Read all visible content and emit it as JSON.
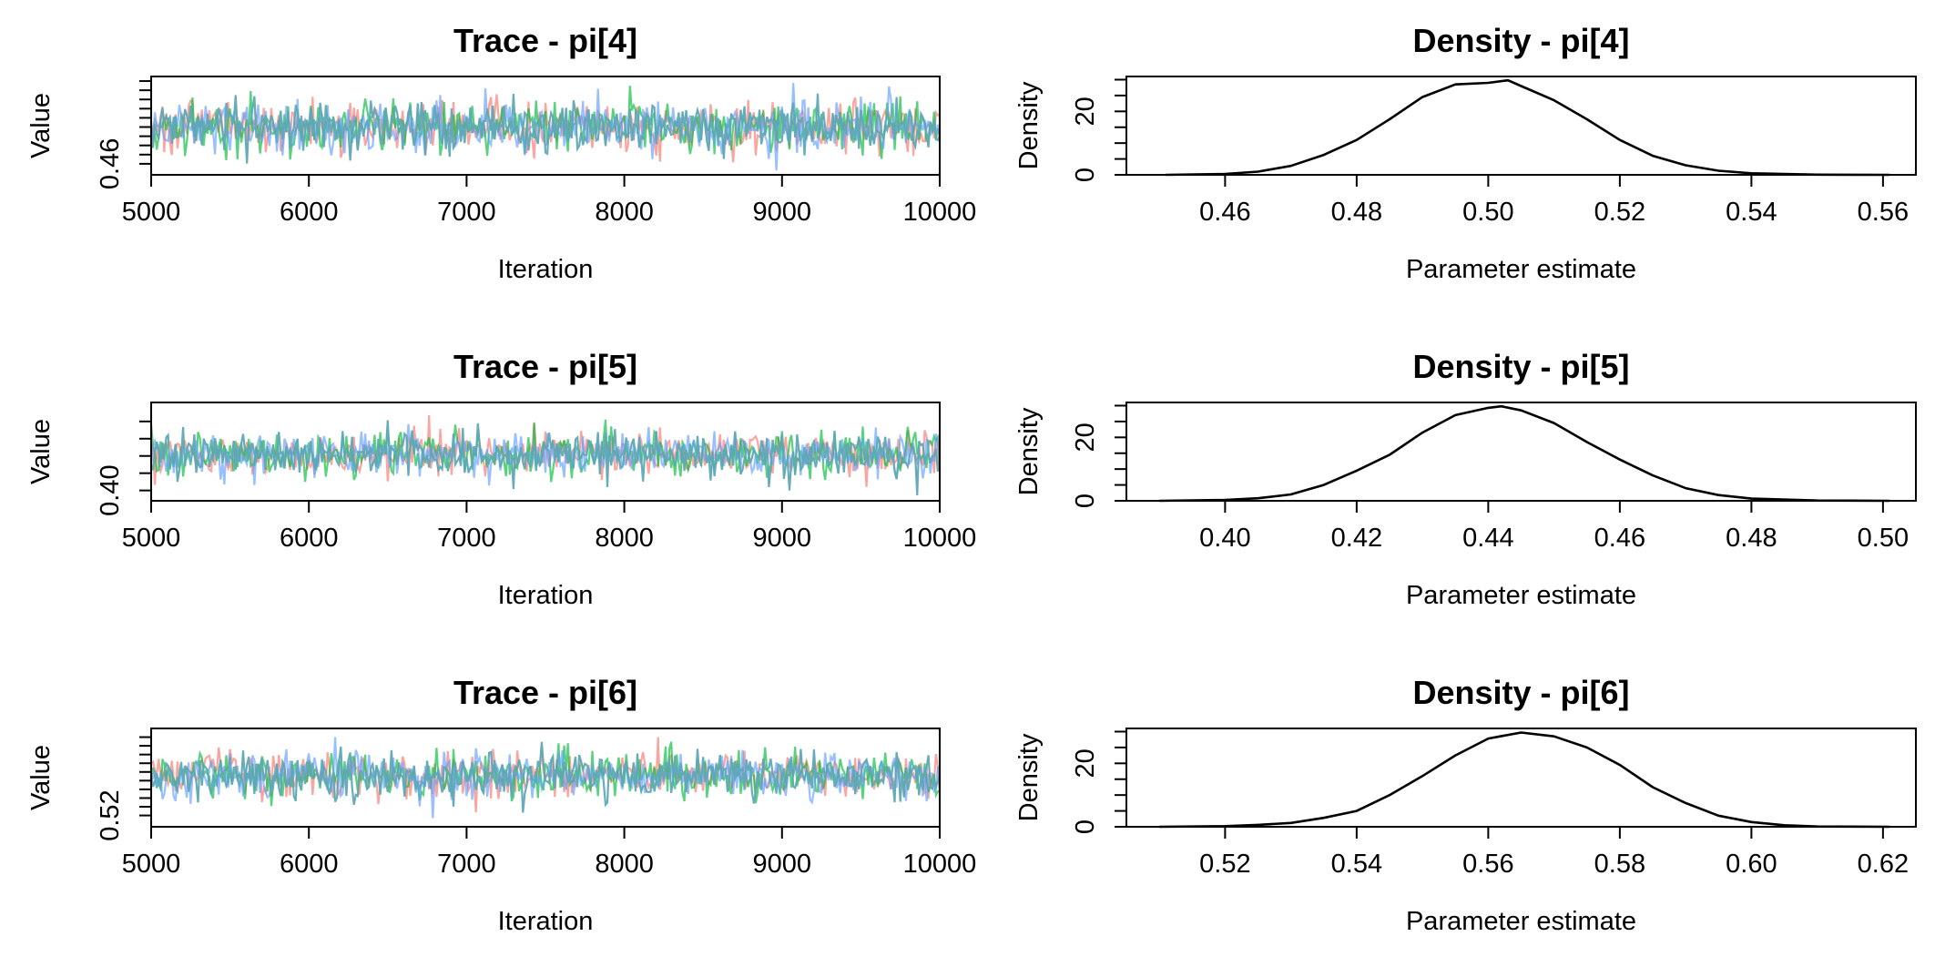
{
  "chart_data": [
    {
      "type": "line",
      "title": "Trace - pi[4]",
      "xlabel": "Iteration",
      "ylabel": "Value",
      "xlim": [
        5000,
        10000
      ],
      "ylim": [
        0.448,
        0.555
      ],
      "x_ticks": [
        5000,
        6000,
        7000,
        8000,
        9000,
        10000
      ],
      "x_tick_labels": [
        "5000",
        "6000",
        "7000",
        "8000",
        "9000",
        "10000"
      ],
      "y_ticks": [
        0.46,
        0.47,
        0.48,
        0.49,
        0.5,
        0.51,
        0.52,
        0.53,
        0.54,
        0.55
      ],
      "y_tick_labels": [
        "0.46"
      ],
      "chain_mean": 0.5,
      "chain_sd": 0.014,
      "series": [
        {
          "color": "#F8766D"
        },
        {
          "color": "#00BA38"
        },
        {
          "color": "#619CFF"
        },
        {
          "color": "#5FA8B5"
        }
      ]
    },
    {
      "type": "area",
      "title": "Density - pi[4]",
      "xlabel": "Parameter estimate",
      "ylabel": "Density",
      "xlim": [
        0.445,
        0.565
      ],
      "ylim": [
        0,
        31
      ],
      "x_ticks": [
        0.46,
        0.48,
        0.5,
        0.52,
        0.54,
        0.56
      ],
      "x_tick_labels": [
        "0.46",
        "0.48",
        "0.50",
        "0.52",
        "0.54",
        "0.56"
      ],
      "y_ticks": [
        0,
        5,
        10,
        15,
        20,
        25,
        30
      ],
      "y_tick_labels": [
        "0",
        "20"
      ],
      "x": [
        0.451,
        0.46,
        0.465,
        0.47,
        0.475,
        0.48,
        0.485,
        0.49,
        0.495,
        0.5,
        0.503,
        0.505,
        0.51,
        0.515,
        0.52,
        0.525,
        0.53,
        0.535,
        0.54,
        0.55,
        0.561
      ],
      "y": [
        0.0,
        0.3,
        1.0,
        2.8,
        6.3,
        11.0,
        17.5,
        24.5,
        28.5,
        29.0,
        29.8,
        28.0,
        23.5,
        17.5,
        11.0,
        6.0,
        3.0,
        1.3,
        0.5,
        0.05,
        0.0
      ]
    },
    {
      "type": "line",
      "title": "Trace - pi[5]",
      "xlabel": "Iteration",
      "ylabel": "Value",
      "xlim": [
        5000,
        10000
      ],
      "ylim": [
        0.388,
        0.502
      ],
      "x_ticks": [
        5000,
        6000,
        7000,
        8000,
        9000,
        10000
      ],
      "x_tick_labels": [
        "5000",
        "6000",
        "7000",
        "8000",
        "9000",
        "10000"
      ],
      "y_ticks": [
        0.4,
        0.42,
        0.44,
        0.46,
        0.48
      ],
      "y_tick_labels": [
        "0.40"
      ],
      "chain_mean": 0.442,
      "chain_sd": 0.0125,
      "series": [
        {
          "color": "#F8766D"
        },
        {
          "color": "#00BA38"
        },
        {
          "color": "#619CFF"
        },
        {
          "color": "#5FA8B5"
        }
      ]
    },
    {
      "type": "area",
      "title": "Density - pi[5]",
      "xlabel": "Parameter estimate",
      "ylabel": "Density",
      "xlim": [
        0.385,
        0.505
      ],
      "ylim": [
        0,
        31
      ],
      "x_ticks": [
        0.4,
        0.42,
        0.44,
        0.46,
        0.48,
        0.5
      ],
      "x_tick_labels": [
        "0.40",
        "0.42",
        "0.44",
        "0.46",
        "0.48",
        "0.50"
      ],
      "y_ticks": [
        0,
        5,
        10,
        15,
        20,
        25,
        30
      ],
      "y_tick_labels": [
        "0",
        "20"
      ],
      "x": [
        0.39,
        0.4,
        0.405,
        0.41,
        0.415,
        0.42,
        0.425,
        0.43,
        0.435,
        0.44,
        0.442,
        0.445,
        0.45,
        0.455,
        0.46,
        0.465,
        0.47,
        0.475,
        0.48,
        0.49,
        0.501
      ],
      "y": [
        0.0,
        0.3,
        0.8,
        2.0,
        5.0,
        9.5,
        14.5,
        21.5,
        27.0,
        29.3,
        29.8,
        28.5,
        24.5,
        18.5,
        13.0,
        8.0,
        4.0,
        1.8,
        0.7,
        0.1,
        0.0
      ]
    },
    {
      "type": "line",
      "title": "Trace - pi[6]",
      "xlabel": "Iteration",
      "ylabel": "Value",
      "xlim": [
        5000,
        10000
      ],
      "ylim": [
        0.507,
        0.62
      ],
      "x_ticks": [
        5000,
        6000,
        7000,
        8000,
        9000,
        10000
      ],
      "x_tick_labels": [
        "5000",
        "6000",
        "7000",
        "8000",
        "9000",
        "10000"
      ],
      "y_ticks": [
        0.52,
        0.53,
        0.54,
        0.55,
        0.56,
        0.57,
        0.58,
        0.59,
        0.6,
        0.61
      ],
      "y_tick_labels": [
        "0.52"
      ],
      "chain_mean": 0.566,
      "chain_sd": 0.0135,
      "series": [
        {
          "color": "#F8766D"
        },
        {
          "color": "#00BA38"
        },
        {
          "color": "#619CFF"
        },
        {
          "color": "#5FA8B5"
        }
      ]
    },
    {
      "type": "area",
      "title": "Density - pi[6]",
      "xlabel": "Parameter estimate",
      "ylabel": "Density",
      "xlim": [
        0.505,
        0.625
      ],
      "ylim": [
        0,
        31
      ],
      "x_ticks": [
        0.52,
        0.54,
        0.56,
        0.58,
        0.6,
        0.62
      ],
      "x_tick_labels": [
        "0.52",
        "0.54",
        "0.56",
        "0.58",
        "0.60",
        "0.62"
      ],
      "y_ticks": [
        0,
        5,
        10,
        15,
        20,
        25,
        30
      ],
      "y_tick_labels": [
        "0",
        "20"
      ],
      "x": [
        0.51,
        0.52,
        0.525,
        0.53,
        0.535,
        0.54,
        0.545,
        0.55,
        0.555,
        0.56,
        0.565,
        0.57,
        0.575,
        0.58,
        0.585,
        0.59,
        0.595,
        0.6,
        0.605,
        0.61,
        0.621
      ],
      "y": [
        0.0,
        0.2,
        0.6,
        1.2,
        2.8,
        5.0,
        10.0,
        16.0,
        22.5,
        27.8,
        29.7,
        28.5,
        25.0,
        19.5,
        12.5,
        7.5,
        3.5,
        1.5,
        0.5,
        0.1,
        0.0
      ]
    }
  ]
}
